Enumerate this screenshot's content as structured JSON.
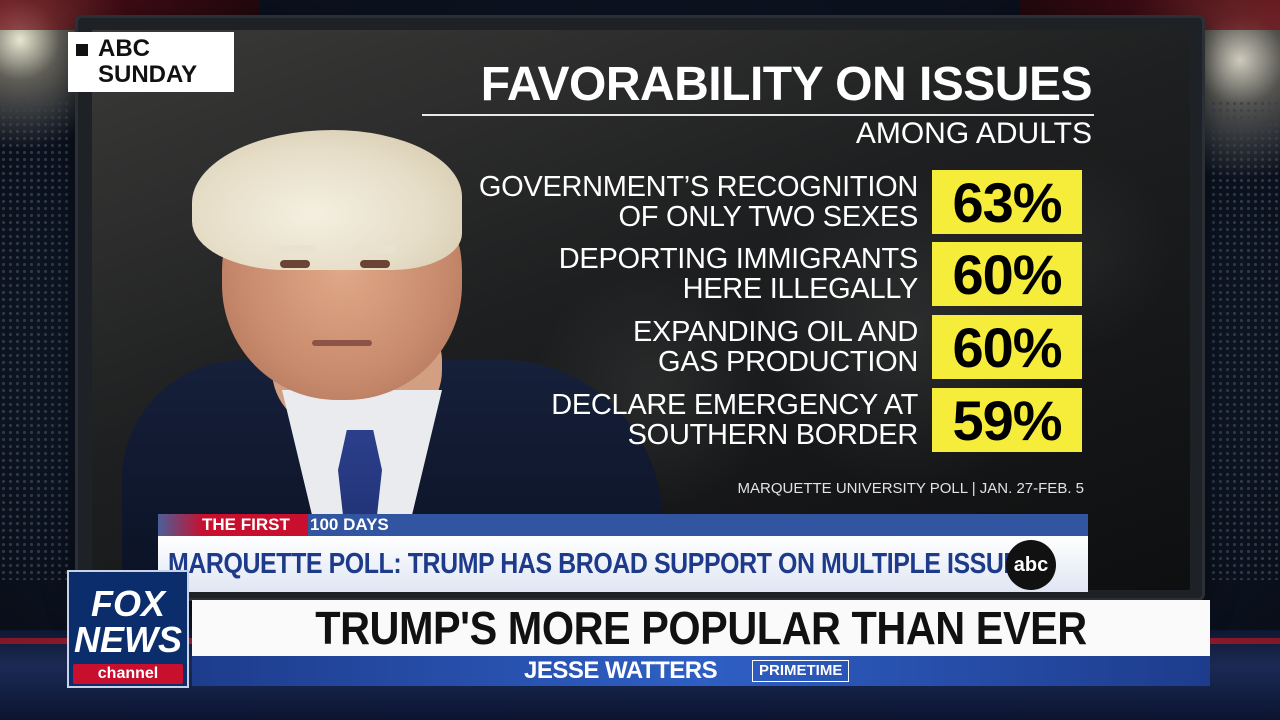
{
  "graphic": {
    "corner_bug": {
      "line1": "ABC",
      "line2": "SUNDAY"
    },
    "title": "FAVORABILITY ON ISSUES",
    "subtitle": "AMONG ADULTS",
    "issues": [
      {
        "line1": "GOVERNMENT’S RECOGNITION",
        "line2": "OF ONLY TWO SEXES",
        "percent": "63%"
      },
      {
        "line1": "DEPORTING IMMIGRANTS",
        "line2": "HERE ILLEGALLY",
        "percent": "60%"
      },
      {
        "line1": "EXPANDING OIL AND",
        "line2": "GAS PRODUCTION",
        "percent": "60%"
      },
      {
        "line1": "DECLARE EMERGENCY AT",
        "line2": "SOUTHERN BORDER",
        "percent": "59%"
      }
    ],
    "source": "MARQUETTE UNIVERSITY POLL | JAN. 27-FEB. 5",
    "highlight_color": "#f6ec3a"
  },
  "inner_lower_third": {
    "tag_red": "THE FIRST",
    "tag_blue": "100 DAYS",
    "headline": "MARQUETTE POLL: TRUMP HAS BROAD SUPPORT ON MULTIPLE ISSUES",
    "logo": "abc"
  },
  "fox_chyron": {
    "logo_line1": "FOX",
    "logo_line2": "NEWS",
    "logo_line3": "channel",
    "headline": "TRUMP'S MORE POPULAR THAN EVER",
    "show_name": "JESSE WATTERS",
    "show_tag": "PRIMETIME"
  }
}
